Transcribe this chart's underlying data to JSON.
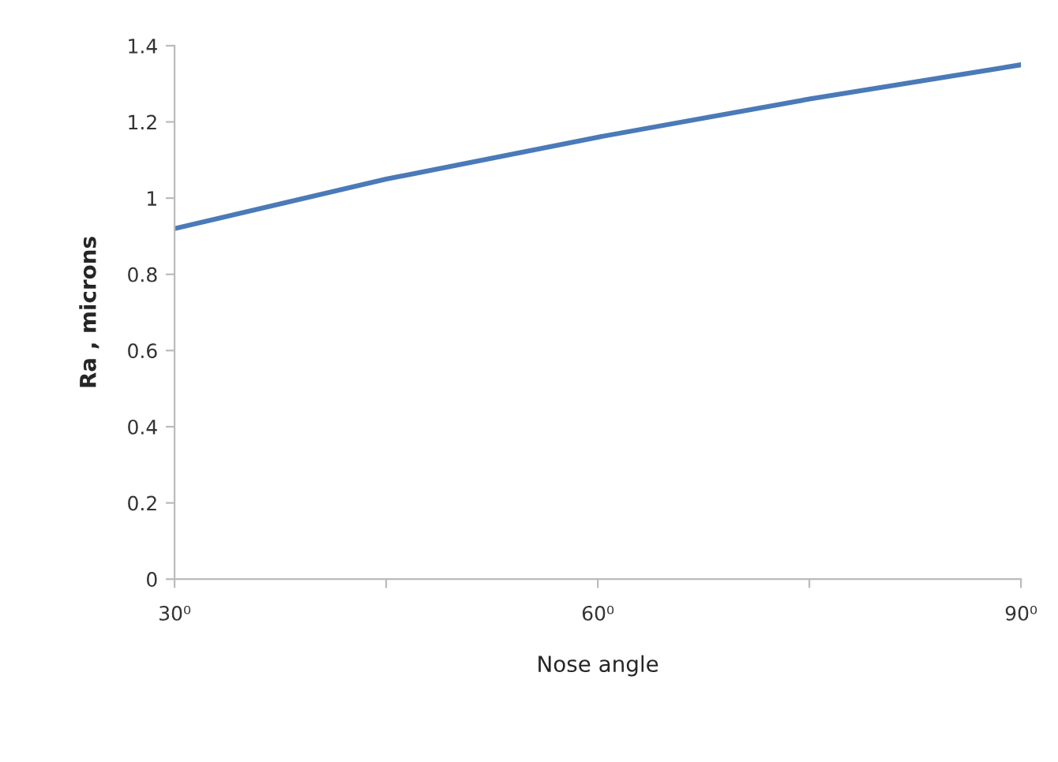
{
  "chart_data": {
    "type": "line",
    "xlabel": "Nose angle",
    "ylabel": "Ra , microns",
    "x": [
      30,
      45,
      60,
      75,
      90
    ],
    "series": [
      {
        "color": "#4a7ab8",
        "values": [
          0.92,
          1.05,
          1.16,
          1.26,
          1.35
        ]
      }
    ],
    "xlim": [
      30,
      90
    ],
    "xticks": [
      {
        "value": 30,
        "label": "30⁰"
      },
      {
        "value": 45,
        "label": null
      },
      {
        "value": 60,
        "label": "60⁰"
      },
      {
        "value": 75,
        "label": null
      },
      {
        "value": 90,
        "label": "90⁰"
      }
    ],
    "ylim": [
      0,
      1.4
    ],
    "yticks": [
      0,
      0.2,
      0.4,
      0.6,
      0.8,
      1,
      1.2,
      1.4
    ],
    "grid": false,
    "marker": "none",
    "line_style": "solid"
  }
}
